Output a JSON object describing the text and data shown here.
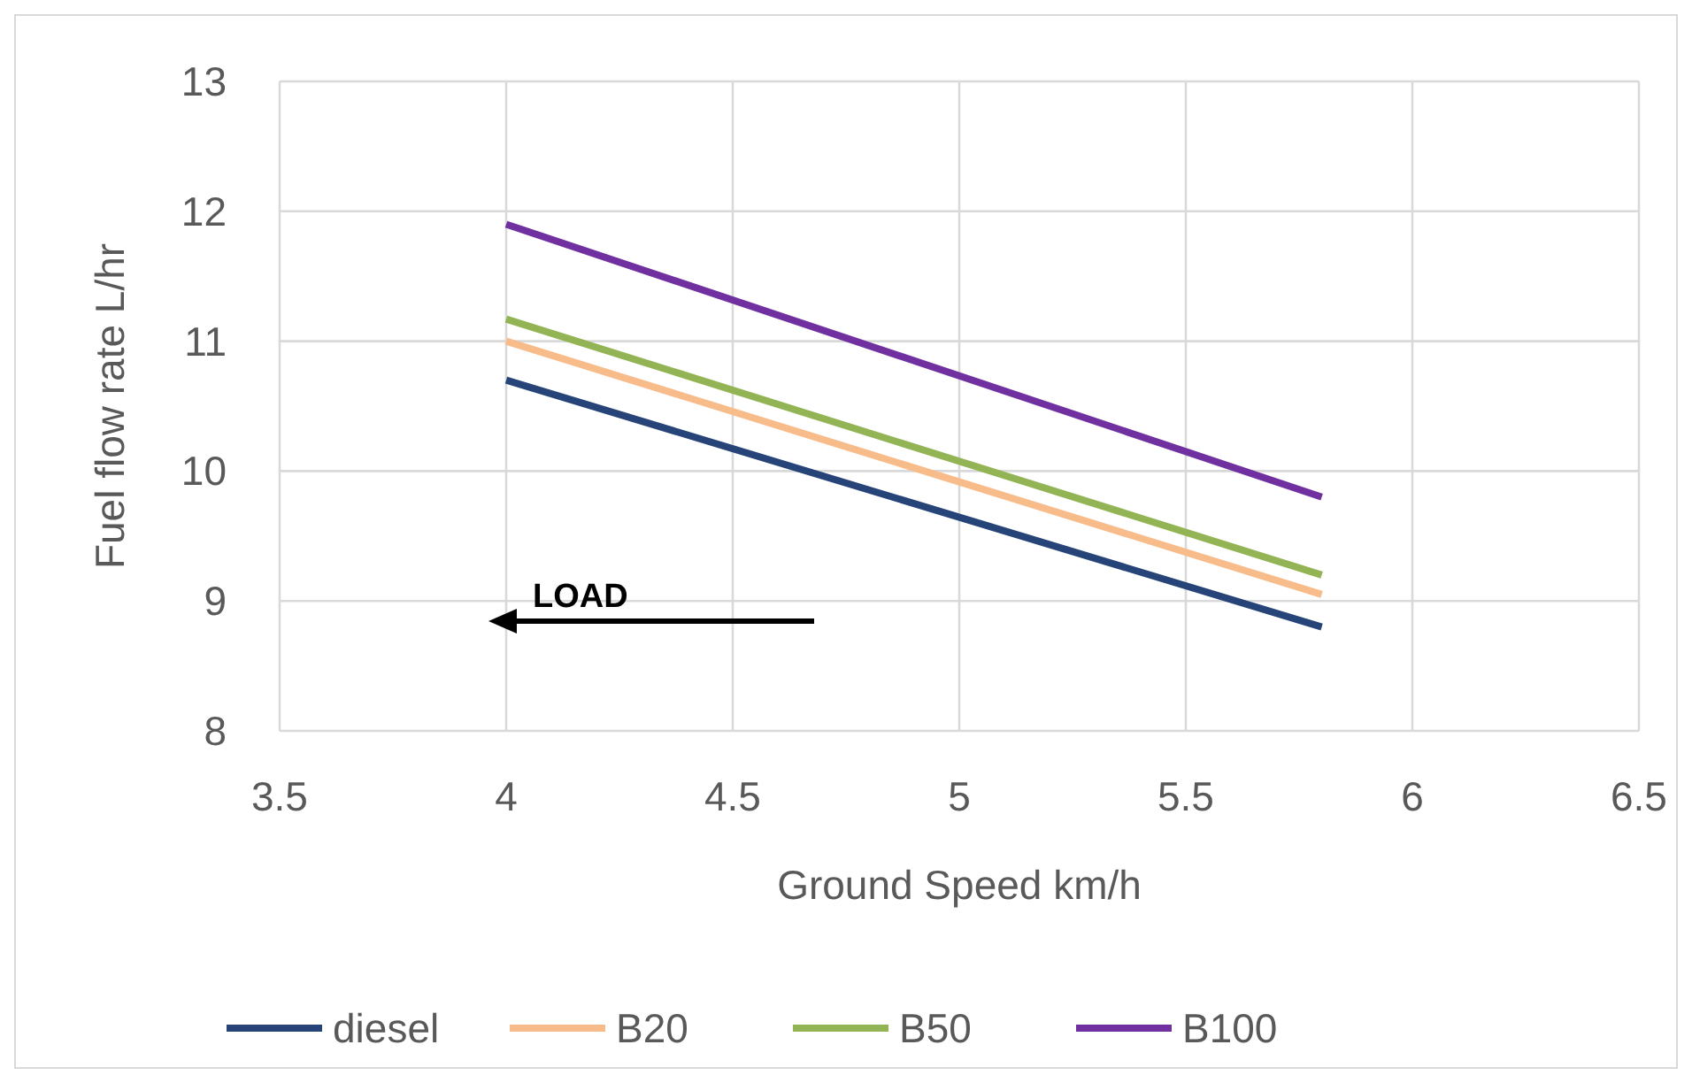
{
  "chart_data": {
    "type": "line",
    "xlabel": "Ground Speed km/h",
    "ylabel": "Fuel flow rate L/hr",
    "x": [
      4,
      5.8
    ],
    "series": [
      {
        "name": "diesel",
        "color": "#264478",
        "values": [
          10.7,
          8.8
        ]
      },
      {
        "name": "B20",
        "color": "#f8bb8a",
        "values": [
          11.0,
          9.05
        ]
      },
      {
        "name": "B50",
        "color": "#92b454",
        "values": [
          11.17,
          9.2
        ]
      },
      {
        "name": "B100",
        "color": "#7030a0",
        "values": [
          11.9,
          9.8
        ]
      }
    ],
    "xlim": [
      3.5,
      6.5
    ],
    "xticks": [
      3.5,
      4,
      4.5,
      5,
      5.5,
      6,
      6.5
    ],
    "ylim": [
      8,
      13
    ],
    "yticks": [
      8,
      9,
      10,
      11,
      12,
      13
    ],
    "grid": true,
    "legend": "bottom",
    "line_style": "solid",
    "annotations": [
      "LOAD"
    ]
  }
}
